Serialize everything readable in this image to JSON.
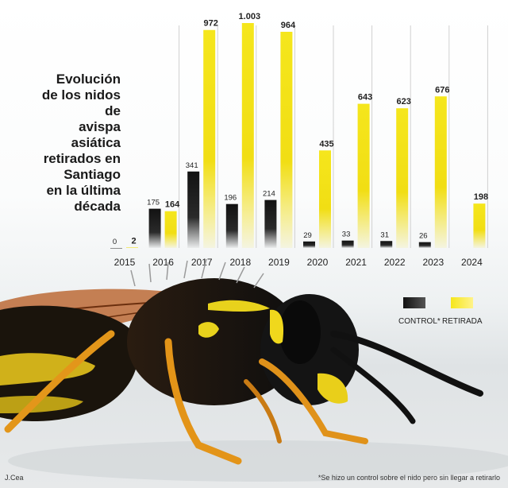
{
  "chart_data": {
    "type": "bar",
    "title": [
      "Evolución",
      "de los nidos de",
      "avispa asiática",
      "retirados en",
      "Santiago",
      "en la última",
      "década"
    ],
    "categories": [
      "2015",
      "2016",
      "2017",
      "2018",
      "2019",
      "2020",
      "2021",
      "2022",
      "2023",
      "2024"
    ],
    "series": [
      {
        "name": "CONTROL*",
        "color": "#1a1a1a",
        "values": [
          0,
          175,
          341,
          196,
          214,
          29,
          33,
          31,
          26,
          null
        ],
        "labels": [
          "0",
          "175",
          "341",
          "196",
          "214",
          "29",
          "33",
          "31",
          "26",
          ""
        ]
      },
      {
        "name": "RETIRADA",
        "color": "#f2e21a",
        "values": [
          2,
          164,
          972,
          1003,
          964,
          435,
          643,
          623,
          676,
          198
        ],
        "labels": [
          "2",
          "164",
          "972",
          "1.003",
          "964",
          "435",
          "643",
          "623",
          "676",
          "198"
        ]
      }
    ],
    "ylim": [
      0,
      1003
    ],
    "grid": false,
    "legend": "right"
  },
  "footnote": "*Se hizo un control sobre el nido pero sin llegar a retirarlo",
  "credit": "J.Cea"
}
